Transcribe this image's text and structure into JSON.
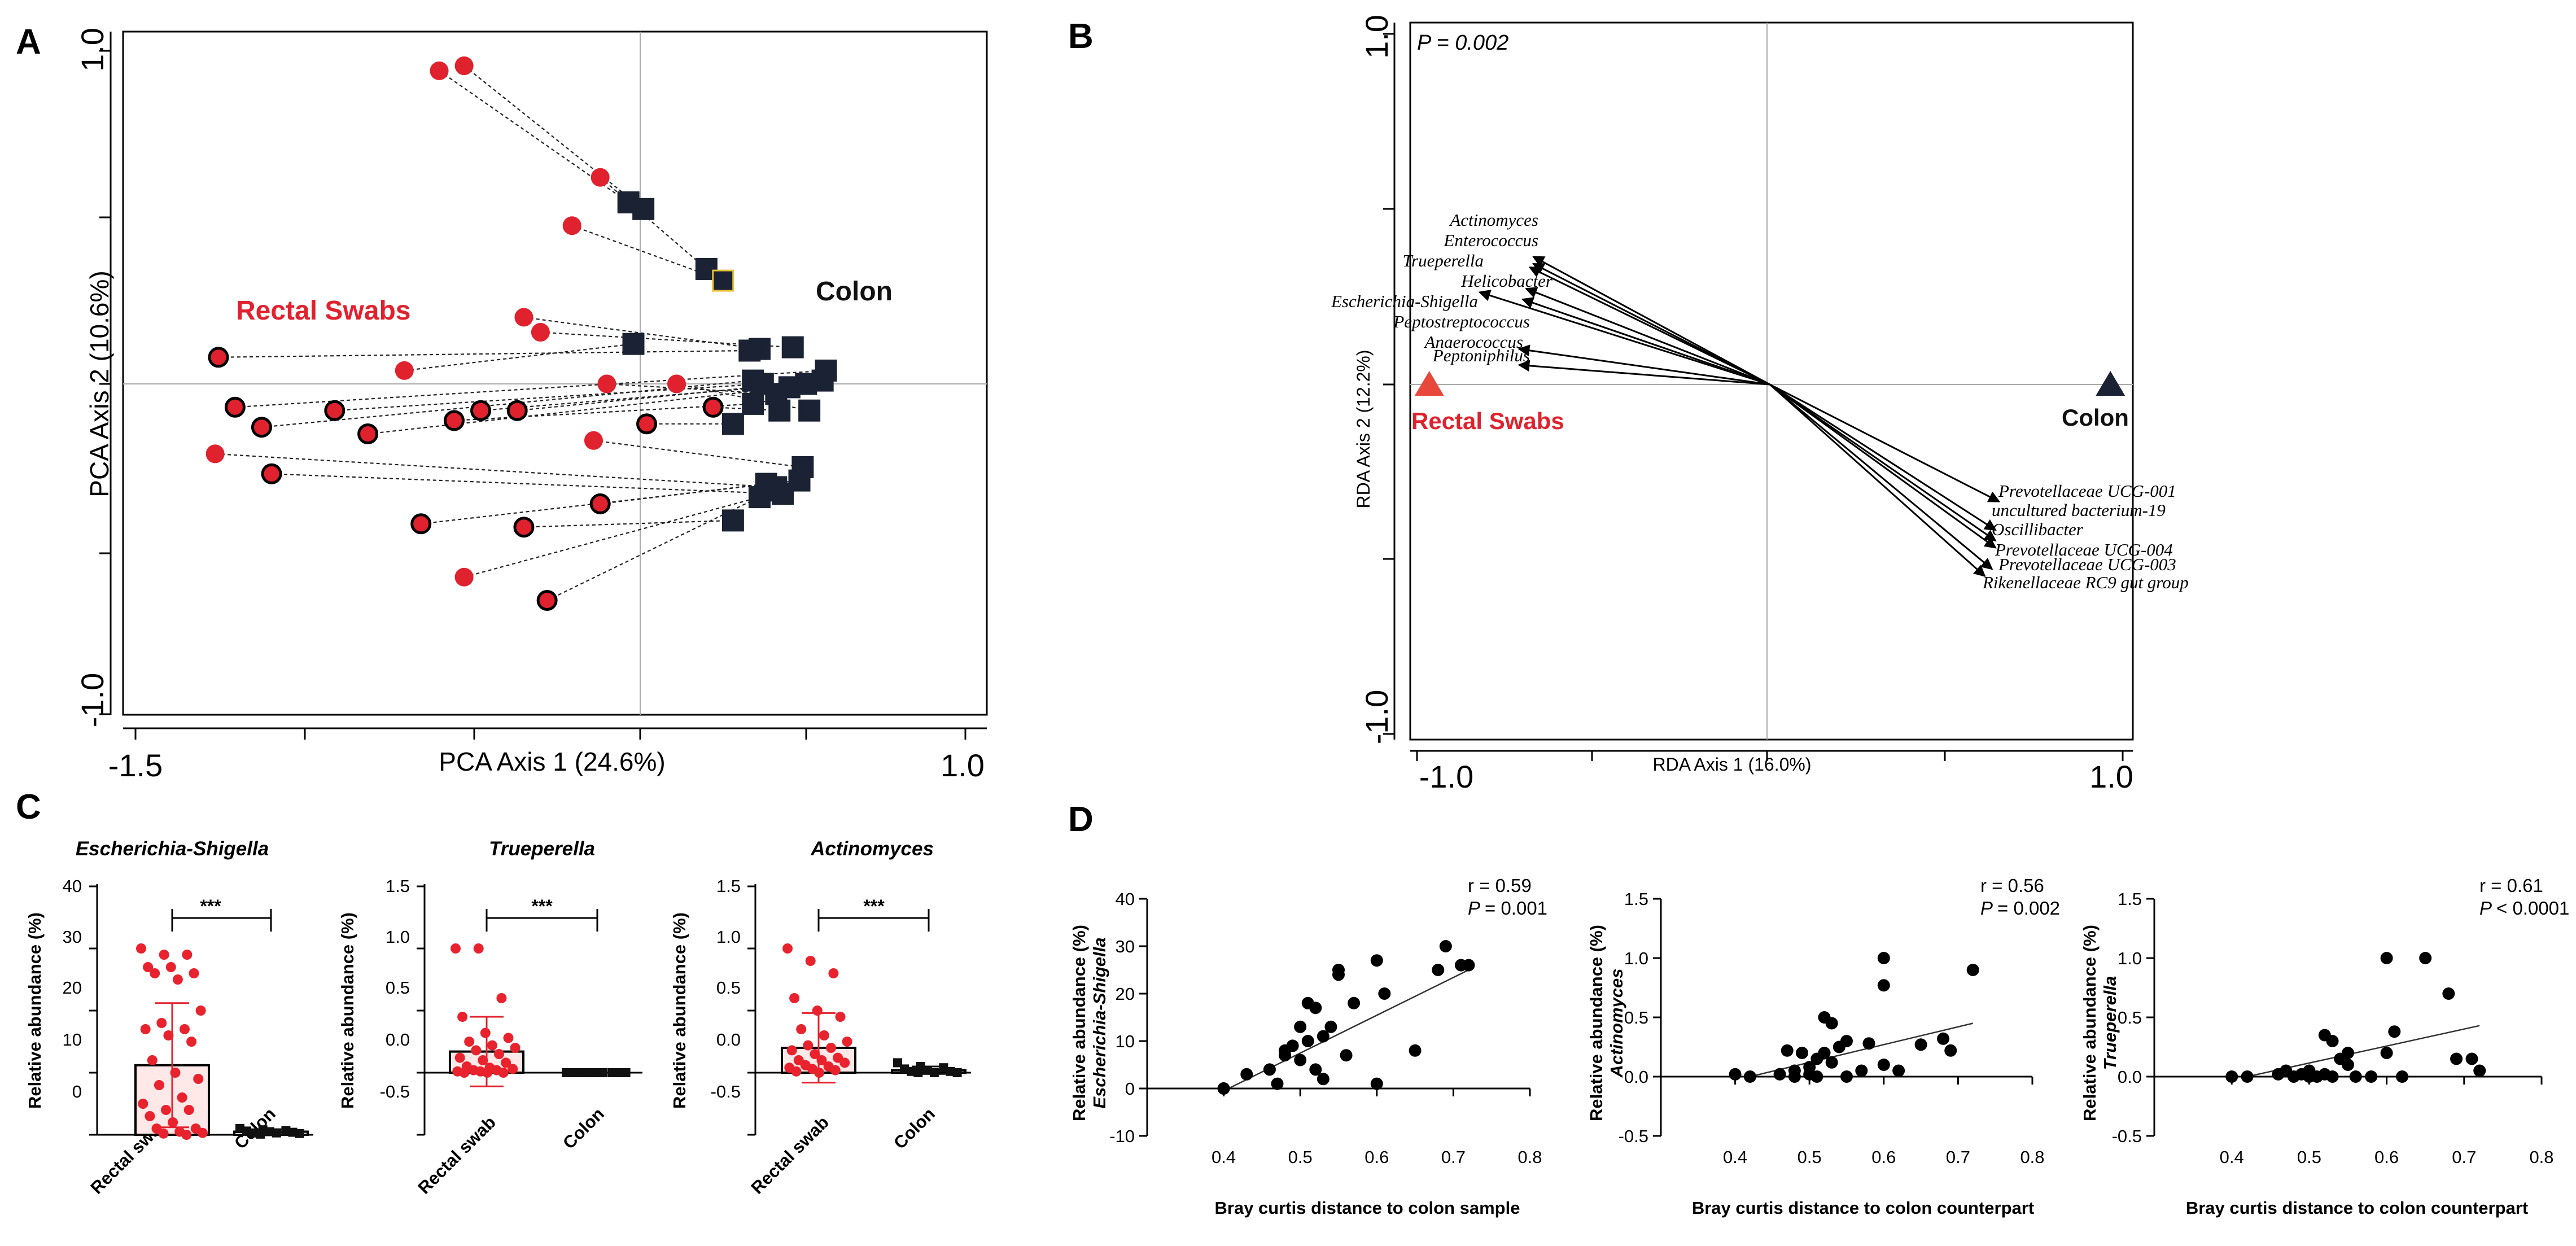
{
  "panel_labels": {
    "a": "A",
    "b": "B",
    "c": "C",
    "d": "D"
  },
  "colors": {
    "rectal": "#e0222e",
    "colon": "#1a2233",
    "bar": "#ffe8e8"
  },
  "chart_data": [
    {
      "id": "A",
      "type": "scatter",
      "xlabel": "PCA Axis 1 (24.6%)",
      "ylabel": "PCA Axis 2 (10.6%)",
      "xlim": [
        -1.5,
        1.0
      ],
      "ylim": [
        -1.0,
        1.0
      ],
      "xtick_labels": [
        "-1.5",
        "1.0"
      ],
      "ytick_labels": [
        "1.0",
        "-1.0"
      ],
      "group_labels": {
        "rectal": "Rectal Swabs",
        "colon": "Colon"
      },
      "pairs": [
        {
          "r": [
            -0.585,
            0.94
          ],
          "c": [
            -0.015,
            0.545
          ],
          "r_outline": false,
          "c_outline": false
        },
        {
          "r": [
            -0.51,
            0.955
          ],
          "c": [
            0.03,
            0.525
          ],
          "r_outline": false,
          "c_outline": false
        },
        {
          "r": [
            -0.1,
            0.62
          ],
          "c": [
            0.22,
            0.345
          ],
          "r_outline": false,
          "c_outline": false
        },
        {
          "r": [
            -0.185,
            0.475
          ],
          "c": [
            0.27,
            0.31
          ],
          "r_outline": false,
          "c_outline": true
        },
        {
          "r": [
            -0.33,
            0.2
          ],
          "c": [
            0.38,
            0.105
          ],
          "r_outline": false,
          "c_outline": false
        },
        {
          "r": [
            -0.28,
            0.155
          ],
          "c": [
            0.48,
            0.11
          ],
          "r_outline": false,
          "c_outline": false
        },
        {
          "r": [
            -0.69,
            0.04
          ],
          "c": [
            0.0,
            0.12
          ],
          "r_outline": false,
          "c_outline": false
        },
        {
          "r": [
            -1.25,
            0.08
          ],
          "c": [
            0.35,
            0.1
          ],
          "r_outline": true,
          "c_outline": false
        },
        {
          "r": [
            -1.2,
            -0.07
          ],
          "c": [
            0.58,
            0.04
          ],
          "r_outline": true,
          "c_outline": false
        },
        {
          "r": [
            -1.12,
            -0.13
          ],
          "c": [
            0.36,
            0.01
          ],
          "r_outline": true,
          "c_outline": false
        },
        {
          "r": [
            -0.9,
            -0.08
          ],
          "c": [
            0.39,
            0.0
          ],
          "r_outline": true,
          "c_outline": false
        },
        {
          "r": [
            -0.8,
            -0.15
          ],
          "c": [
            0.47,
            -0.01
          ],
          "r_outline": true,
          "c_outline": false
        },
        {
          "r": [
            -0.46,
            -0.08
          ],
          "c": [
            0.52,
            0.0
          ],
          "r_outline": true,
          "c_outline": false
        },
        {
          "r": [
            -0.35,
            -0.08
          ],
          "c": [
            0.57,
            0.01
          ],
          "r_outline": true,
          "c_outline": false
        },
        {
          "r": [
            -0.08,
            0.0
          ],
          "c": [
            0.43,
            -0.03
          ],
          "r_outline": false,
          "c_outline": false
        },
        {
          "r": [
            -0.54,
            -0.11
          ],
          "c": [
            0.36,
            -0.06
          ],
          "r_outline": true,
          "c_outline": false
        },
        {
          "r": [
            0.04,
            -0.12
          ],
          "c": [
            0.3,
            -0.12
          ],
          "r_outline": true,
          "c_outline": false
        },
        {
          "r": [
            0.13,
            0.0
          ],
          "c": [
            0.53,
            -0.08
          ],
          "r_outline": false,
          "c_outline": false
        },
        {
          "r": [
            0.24,
            -0.07
          ],
          "c": [
            0.44,
            -0.08
          ],
          "r_outline": true,
          "c_outline": false
        },
        {
          "r": [
            -1.26,
            -0.21
          ],
          "c": [
            0.43,
            -0.31
          ],
          "r_outline": false,
          "c_outline": false
        },
        {
          "r": [
            -1.09,
            -0.27
          ],
          "c": [
            0.45,
            -0.33
          ],
          "r_outline": true,
          "c_outline": false
        },
        {
          "r": [
            -0.12,
            -0.17
          ],
          "c": [
            0.51,
            -0.25
          ],
          "r_outline": false,
          "c_outline": false
        },
        {
          "r": [
            -0.1,
            -0.36
          ],
          "c": [
            0.4,
            -0.3
          ],
          "r_outline": true,
          "c_outline": false
        },
        {
          "r": [
            -0.64,
            -0.42
          ],
          "c": [
            0.5,
            -0.29
          ],
          "r_outline": true,
          "c_outline": false
        },
        {
          "r": [
            -0.33,
            -0.43
          ],
          "c": [
            0.3,
            -0.41
          ],
          "r_outline": true,
          "c_outline": false
        },
        {
          "r": [
            -0.51,
            -0.58
          ],
          "c": [
            0.38,
            -0.34
          ],
          "r_outline": false,
          "c_outline": false
        },
        {
          "r": [
            -0.26,
            -0.65
          ],
          "c": [
            0.42,
            -0.32
          ],
          "r_outline": true,
          "c_outline": false
        }
      ]
    },
    {
      "id": "B",
      "type": "biplot",
      "stat": "P = 0.002",
      "xlabel": "RDA Axis 1 (16.0%)",
      "ylabel": "RDA Axis 2 (12.2%)",
      "xlim": [
        -1.0,
        1.0
      ],
      "ylim": [
        -1.0,
        1.0
      ],
      "xtick_labels": [
        "-1.0",
        "1.0"
      ],
      "ytick_labels": [
        "1.0",
        "-1.0"
      ],
      "groups": [
        {
          "name": "Rectal Swabs",
          "x": -0.95,
          "y": 0.0,
          "color": "#e8473b"
        },
        {
          "name": "Colon",
          "x": 0.95,
          "y": 0.0,
          "color": "#1a2233"
        }
      ],
      "arrows": [
        {
          "name": "Actinomyces",
          "x": -0.66,
          "y": 0.36
        },
        {
          "name": "Enterococcus",
          "x": -0.66,
          "y": 0.34
        },
        {
          "name": "Trueperella",
          "x": -0.67,
          "y": 0.33
        },
        {
          "name": "Helicobacter",
          "x": -0.68,
          "y": 0.27
        },
        {
          "name": "Escherichia-Shigella",
          "x": -0.81,
          "y": 0.26
        },
        {
          "name": "Peptostreptococcus",
          "x": -0.69,
          "y": 0.24
        },
        {
          "name": "Anaerococcus",
          "x": -0.7,
          "y": 0.1
        },
        {
          "name": "Peptoniphilus",
          "x": -0.7,
          "y": 0.055
        },
        {
          "name": "Prevotellaceae UCG-001",
          "x": 0.64,
          "y": -0.33
        },
        {
          "name": "uncultured bacterium-19",
          "x": 0.63,
          "y": -0.41
        },
        {
          "name": "Oscillibacter",
          "x": 0.63,
          "y": -0.44
        },
        {
          "name": "Prevotellaceae UCG-004",
          "x": 0.63,
          "y": -0.46
        },
        {
          "name": "Prevotellaceae UCG-003",
          "x": 0.62,
          "y": -0.52
        },
        {
          "name": "Rikenellaceae RC9 gut group",
          "x": 0.6,
          "y": -0.54
        }
      ]
    },
    {
      "id": "C1",
      "type": "bar",
      "title": "Escherichia-Shigella",
      "ylabel": "Relative abundance (%)",
      "categories": [
        "Rectal swab",
        "Colon"
      ],
      "values": [
        11.2,
        0.5
      ],
      "sd": [
        10.0,
        0.4
      ],
      "ylim": [
        0,
        40
      ],
      "yticks": [
        "0",
        "10",
        "20",
        "30",
        "40"
      ],
      "ytick_values": [
        0,
        10,
        20,
        30,
        40
      ],
      "significance": "***",
      "points": [
        [
          30,
          29,
          29,
          27,
          27,
          26,
          26,
          25,
          20,
          18,
          17,
          17,
          16,
          15,
          12,
          10,
          9,
          8,
          6,
          5,
          4,
          4,
          3,
          2,
          1,
          1,
          0.5,
          0.3,
          0.2,
          0
        ],
        [
          1.0,
          0.8,
          0.7,
          0.6,
          0.5,
          0.4,
          0.3,
          0.3,
          0.2,
          0.1
        ]
      ]
    },
    {
      "id": "C2",
      "type": "bar",
      "title": "Trueperella",
      "ylabel": "Relative abundance (%)",
      "categories": [
        "Rectal swab",
        "Colon"
      ],
      "values": [
        0.17,
        0.0
      ],
      "sd": [
        0.28,
        0.0
      ],
      "ylim": [
        -0.5,
        1.5
      ],
      "yticks": [
        "-0.5",
        "0.0",
        "0.5",
        "1.0",
        "1.5"
      ],
      "ytick_values": [
        -0.5,
        0,
        0.5,
        1.0,
        1.5
      ],
      "significance": "***",
      "points": [
        [
          1.0,
          1.0,
          0.6,
          0.45,
          0.32,
          0.28,
          0.25,
          0.22,
          0.2,
          0.18,
          0.15,
          0.12,
          0.1,
          0.08,
          0.05,
          0.04,
          0.03,
          0.02,
          0.02,
          0.01,
          0.01,
          0.0,
          0.0,
          0.0
        ],
        [
          0.0,
          0.0,
          0.0,
          0.0,
          0.0,
          0.0,
          0.0,
          0.0,
          0.0,
          0.0
        ]
      ]
    },
    {
      "id": "C3",
      "type": "bar",
      "title": "Actinomyces",
      "ylabel": "Relative abundance (%)",
      "categories": [
        "Rectal swab",
        "Colon"
      ],
      "values": [
        0.2,
        0.02
      ],
      "sd": [
        0.28,
        0.03
      ],
      "ylim": [
        -0.5,
        1.5
      ],
      "yticks": [
        "-0.5",
        "0.0",
        "0.5",
        "1.0",
        "1.5"
      ],
      "ytick_values": [
        -0.5,
        0,
        0.5,
        1.0,
        1.5
      ],
      "significance": "***",
      "points": [
        [
          1.0,
          0.9,
          0.8,
          0.6,
          0.5,
          0.45,
          0.35,
          0.3,
          0.25,
          0.22,
          0.2,
          0.18,
          0.15,
          0.12,
          0.1,
          0.1,
          0.08,
          0.06,
          0.05,
          0.04,
          0.03,
          0.02,
          0.01,
          0.0
        ],
        [
          0.08,
          0.05,
          0.04,
          0.03,
          0.02,
          0.01,
          0.01,
          0.0,
          0.0,
          0.0
        ]
      ]
    },
    {
      "id": "D1",
      "type": "scatter",
      "ylabel_line1": "Relative abundance (%)",
      "ylabel_line2": "Escherichia-Shigella",
      "xlabel": "Bray curtis distance to colon sample",
      "r": "r = 0.59",
      "p": "= 0.001",
      "xlim": [
        0.3,
        0.8
      ],
      "ylim": [
        -10,
        40
      ],
      "xticks": [
        "0.4",
        "0.5",
        "0.6",
        "0.7",
        "0.8"
      ],
      "xtick_values": [
        0.4,
        0.5,
        0.6,
        0.7,
        0.8
      ],
      "yticks": [
        "-10",
        "0",
        "10",
        "20",
        "30",
        "40"
      ],
      "ytick_values": [
        -10,
        0,
        10,
        20,
        30,
        40
      ],
      "fit": [
        [
          0.4,
          -0.5
        ],
        [
          0.72,
          25
        ]
      ],
      "x": [
        0.4,
        0.4,
        0.43,
        0.46,
        0.47,
        0.48,
        0.48,
        0.49,
        0.5,
        0.5,
        0.51,
        0.51,
        0.52,
        0.52,
        0.53,
        0.53,
        0.54,
        0.55,
        0.55,
        0.56,
        0.57,
        0.6,
        0.6,
        0.61,
        0.65,
        0.68,
        0.69,
        0.71,
        0.72
      ],
      "y": [
        0,
        0,
        3,
        4,
        1,
        8,
        7,
        9,
        13,
        6,
        18,
        10,
        17,
        4,
        2,
        11,
        13,
        25,
        24,
        7,
        18,
        27,
        1,
        20,
        8,
        25,
        30,
        26,
        26
      ]
    },
    {
      "id": "D2",
      "type": "scatter",
      "ylabel_line1": "Relative abundance (%)",
      "ylabel_line2": "Actinomyces",
      "xlabel": "Bray curtis distance to colon counterpart",
      "r": "r = 0.56",
      "p": "= 0.002",
      "xlim": [
        0.3,
        0.8
      ],
      "ylim": [
        -0.5,
        1.5
      ],
      "xticks": [
        "0.4",
        "0.5",
        "0.6",
        "0.7",
        "0.8"
      ],
      "xtick_values": [
        0.4,
        0.5,
        0.6,
        0.7,
        0.8
      ],
      "yticks": [
        "-0.5",
        "0.0",
        "0.5",
        "1.0",
        "1.5"
      ],
      "ytick_values": [
        -0.5,
        0,
        0.5,
        1.0,
        1.5
      ],
      "fit": [
        [
          0.42,
          0.0
        ],
        [
          0.72,
          0.45
        ]
      ],
      "x": [
        0.4,
        0.42,
        0.46,
        0.47,
        0.48,
        0.48,
        0.49,
        0.5,
        0.5,
        0.51,
        0.51,
        0.52,
        0.52,
        0.53,
        0.53,
        0.54,
        0.55,
        0.55,
        0.57,
        0.58,
        0.6,
        0.6,
        0.6,
        0.62,
        0.65,
        0.68,
        0.69,
        0.72
      ],
      "y": [
        0.02,
        0.0,
        0.02,
        0.22,
        0.05,
        0.0,
        0.2,
        0.08,
        0.02,
        0.15,
        0.0,
        0.2,
        0.5,
        0.12,
        0.45,
        0.25,
        0.3,
        0.0,
        0.05,
        0.28,
        1.0,
        0.77,
        0.1,
        0.05,
        0.27,
        0.32,
        0.22,
        0.9
      ]
    },
    {
      "id": "D3",
      "type": "scatter",
      "ylabel_line1": "Relative abundance (%)",
      "ylabel_line2": "Trueperella",
      "xlabel": "Bray curtis distance to colon counterpart",
      "r": "r = 0.61",
      "p": "< 0.0001",
      "xlim": [
        0.3,
        0.8
      ],
      "ylim": [
        -0.5,
        1.5
      ],
      "xticks": [
        "0.4",
        "0.5",
        "0.6",
        "0.7",
        "0.8"
      ],
      "xtick_values": [
        0.4,
        0.5,
        0.6,
        0.7,
        0.8
      ],
      "yticks": [
        "-0.5",
        "0.0",
        "0.5",
        "1.0",
        "1.5"
      ],
      "ytick_values": [
        -0.5,
        0,
        0.5,
        1.0,
        1.5
      ],
      "fit": [
        [
          0.42,
          0.0
        ],
        [
          0.72,
          0.43
        ]
      ],
      "x": [
        0.4,
        0.42,
        0.46,
        0.47,
        0.48,
        0.49,
        0.5,
        0.5,
        0.51,
        0.52,
        0.52,
        0.53,
        0.53,
        0.54,
        0.55,
        0.55,
        0.56,
        0.58,
        0.6,
        0.6,
        0.61,
        0.62,
        0.65,
        0.68,
        0.69,
        0.71,
        0.72
      ],
      "y": [
        0.0,
        0.0,
        0.02,
        0.05,
        0.0,
        0.02,
        0.05,
        0.0,
        0.0,
        0.35,
        0.02,
        0.0,
        0.3,
        0.15,
        0.2,
        0.1,
        0.0,
        0.0,
        1.0,
        0.2,
        0.38,
        0.0,
        1.0,
        0.7,
        0.15,
        0.15,
        0.05
      ]
    }
  ]
}
